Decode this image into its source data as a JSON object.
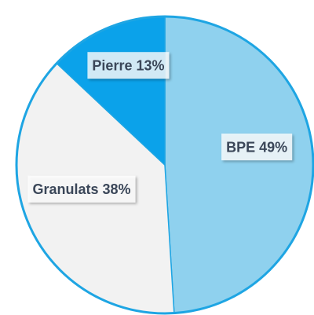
{
  "chart_data": {
    "type": "pie",
    "categories": [
      "BPE",
      "Granulats",
      "Pierre"
    ],
    "values": [
      49,
      38,
      13
    ],
    "value_labels": [
      "49%",
      "38%",
      "13%"
    ],
    "colors": [
      "#8fd1ee",
      "#f2f2f2",
      "#0ba2ea"
    ]
  }
}
